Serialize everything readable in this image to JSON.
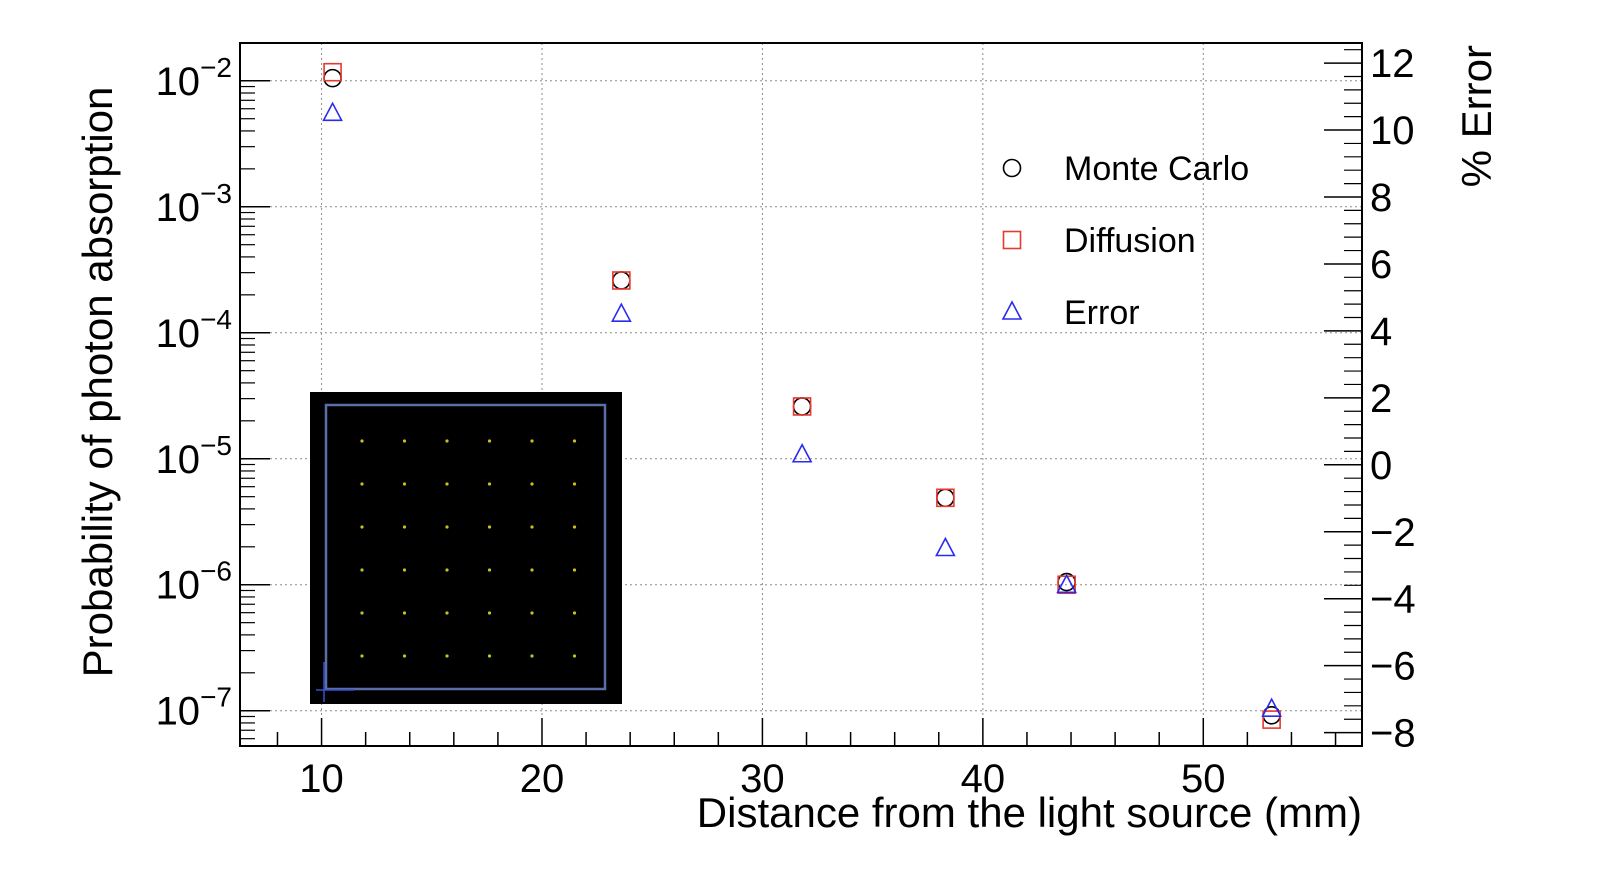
{
  "chart_data": {
    "type": "scatter",
    "xlabel": "Distance from the light source (mm)",
    "ylabel_left": "Probability of photon absorption",
    "ylabel_right": "% Error",
    "x_ticks": [
      10,
      20,
      30,
      40,
      50
    ],
    "xlim": [
      6.3,
      57.2
    ],
    "ylim_left_log10": [
      -7.28,
      -1.7
    ],
    "y_left_ticks_exp": [
      -7,
      -6,
      -5,
      -4,
      -3,
      -2
    ],
    "ylim_right": [
      -8.4,
      12.6
    ],
    "y_right_ticks": [
      -8,
      -6,
      -4,
      -2,
      0,
      2,
      4,
      6,
      8,
      10,
      12
    ],
    "y_left_scale": "log",
    "grid": true,
    "legend_position": "top-right",
    "series": [
      {
        "name": "Monte Carlo",
        "axis": "left",
        "marker": "circle",
        "color": "#000000",
        "x": [
          10.5,
          23.6,
          31.8,
          38.3,
          43.8,
          53.1
        ],
        "y": [
          0.0105,
          0.00026,
          2.6e-05,
          4.9e-06,
          1.05e-06,
          9.2e-08
        ]
      },
      {
        "name": "Diffusion",
        "axis": "left",
        "marker": "square",
        "color": "#e8392f",
        "x": [
          10.5,
          23.6,
          31.8,
          38.3,
          43.8,
          53.1
        ],
        "y": [
          0.0117,
          0.00026,
          2.6e-05,
          4.9e-06,
          1e-06,
          8.5e-08
        ]
      },
      {
        "name": "Error",
        "axis": "right",
        "marker": "triangle",
        "color": "#2b2bf0",
        "x": [
          10.5,
          23.6,
          31.8,
          38.3,
          43.8,
          53.1
        ],
        "y": [
          10.5,
          4.5,
          0.3,
          -2.5,
          -3.6,
          -7.3
        ]
      }
    ]
  },
  "inset": {
    "grid_rows": 6,
    "grid_cols": 6,
    "background": "#000000",
    "frame_color": "#5c6ea8",
    "dot_color": "#c8c020"
  }
}
